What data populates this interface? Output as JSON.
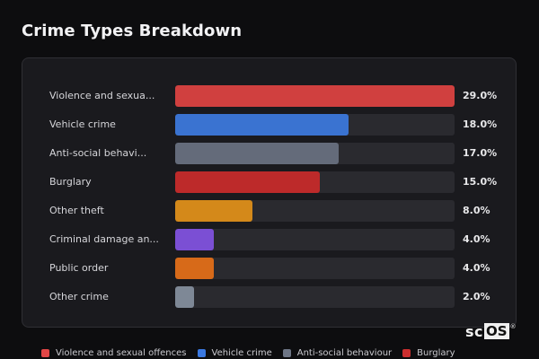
{
  "title": "Crime Types Breakdown",
  "colors": {
    "background": "#0d0d0f",
    "panel": "#1a1a1e",
    "track": "#2a2a2f"
  },
  "chart_data": {
    "type": "bar",
    "orientation": "horizontal",
    "title": "Crime Types Breakdown",
    "xlim": [
      0,
      29
    ],
    "categories": [
      "Violence and sexua...",
      "Vehicle crime",
      "Anti-social behavi...",
      "Burglary",
      "Other theft",
      "Criminal damage an...",
      "Public order",
      "Other crime"
    ],
    "values": [
      29.0,
      18.0,
      17.0,
      15.0,
      8.0,
      4.0,
      4.0,
      2.0
    ],
    "value_labels": [
      "29.0%",
      "18.0%",
      "17.0%",
      "15.0%",
      "8.0%",
      "4.0%",
      "4.0%",
      "2.0%"
    ],
    "bar_colors": [
      "#d0403f",
      "#3a73d1",
      "#646b7a",
      "#bd2a2a",
      "#d4891a",
      "#7b4fd4",
      "#d76a19",
      "#7e8896"
    ],
    "legend": [
      {
        "label": "Violence and sexual offences",
        "color": "#e04646"
      },
      {
        "label": "Vehicle crime",
        "color": "#3a78e0"
      },
      {
        "label": "Anti-social behaviour",
        "color": "#6e7686"
      },
      {
        "label": "Burglary",
        "color": "#cc2f2f"
      }
    ],
    "legend_position": "bottom"
  },
  "logo": {
    "part1": "sc",
    "part2": "OS",
    "mark": "®"
  }
}
